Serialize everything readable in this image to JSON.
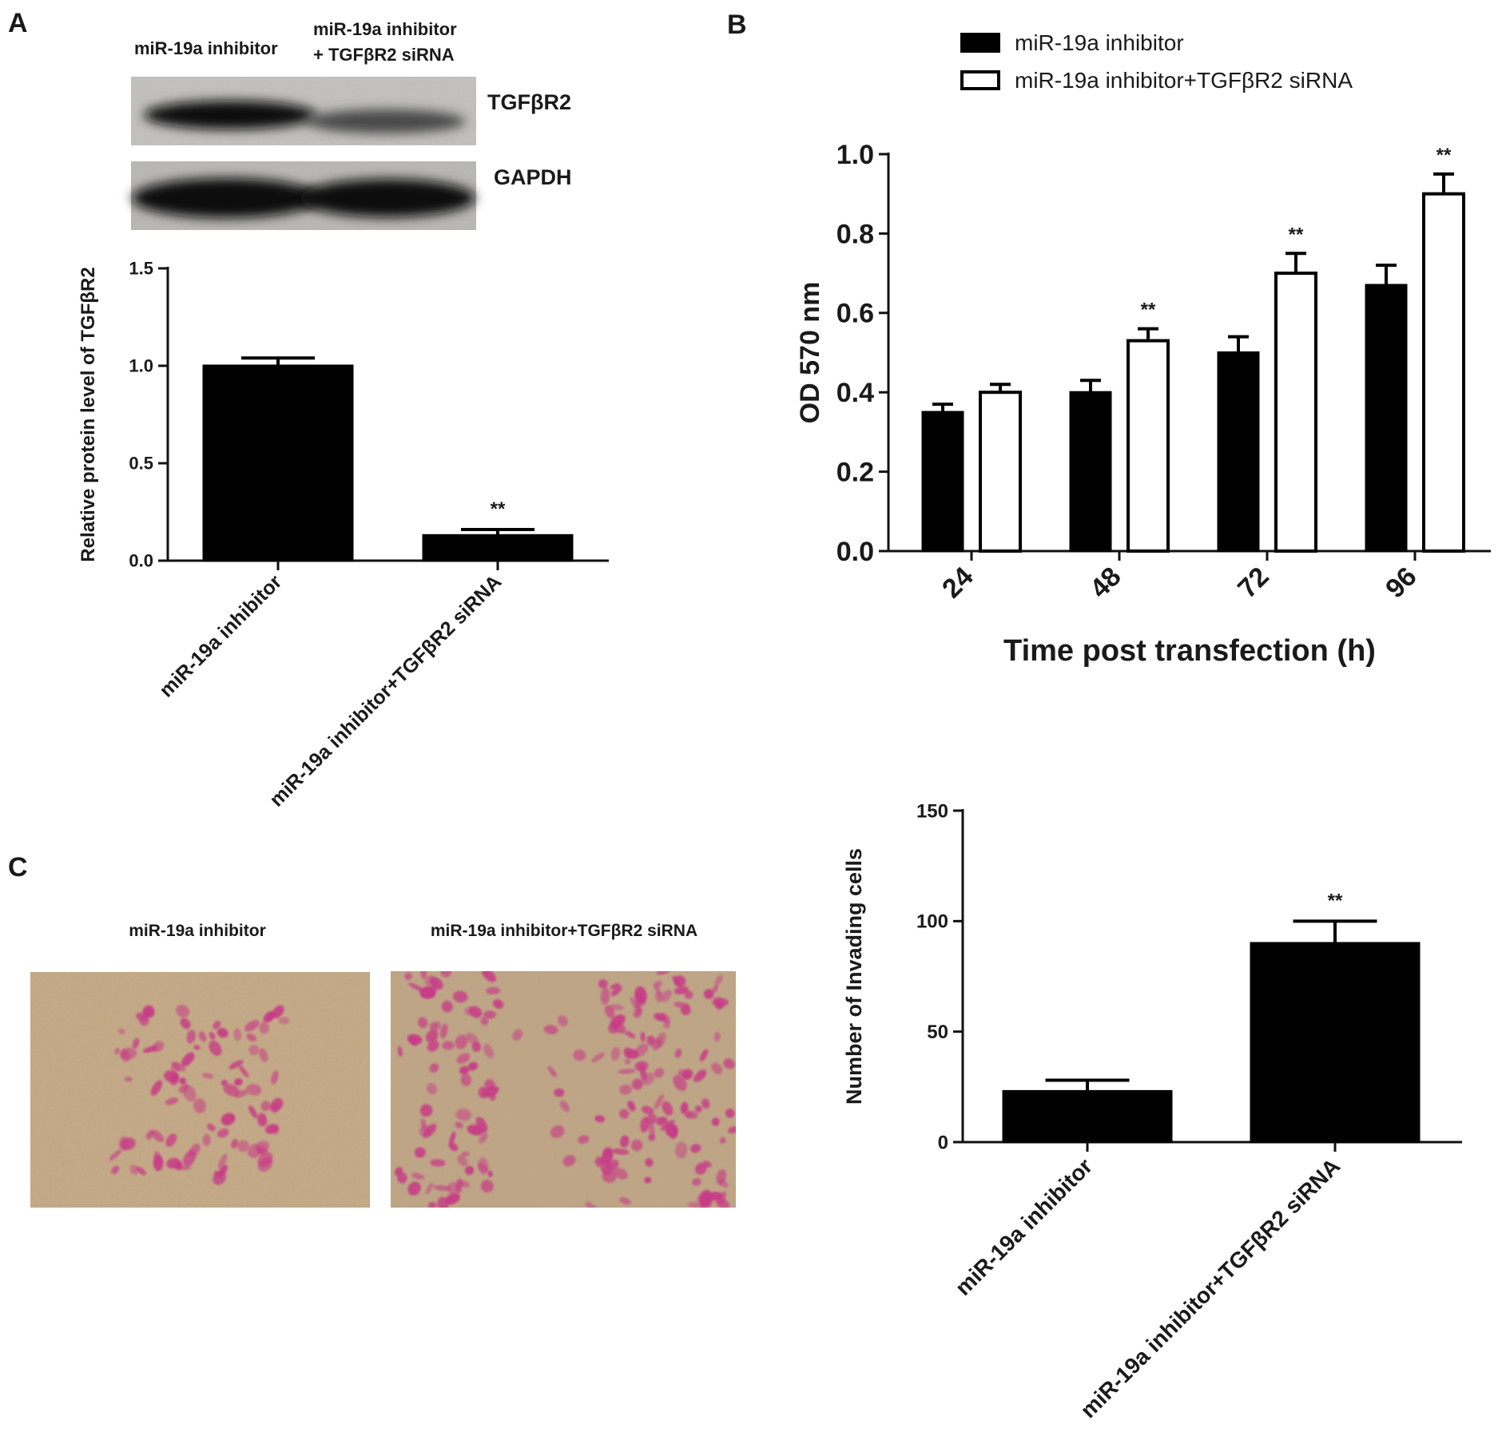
{
  "colors": {
    "bar_fill": "#000000",
    "open_bar_fill": "#ffffff",
    "axis": "#111111",
    "stain_magenta": "#c83a86",
    "micro_background": "#c9ab85"
  },
  "panels": {
    "a": {
      "letter": "A",
      "blot": {
        "lane_labels": [
          "miR-19a inhibitor",
          "miR-19a inhibitor",
          "+ TGFβR2 siRNA"
        ],
        "band_labels": [
          "TGFβR2",
          "GAPDH"
        ]
      }
    },
    "b": {
      "letter": "B"
    },
    "c": {
      "letter": "C",
      "image_labels": [
        "miR-19a inhibitor",
        "miR-19a inhibitor+TGFβR2 siRNA"
      ]
    }
  },
  "chart_data": [
    {
      "id": "a",
      "type": "bar",
      "title": "",
      "xlabel": "",
      "ylabel": "Relative protein level of TGFβR2",
      "categories": [
        "miR-19a inhibitor",
        "miR-19a inhibitor+TGFβR2 siRNA"
      ],
      "values": [
        1.0,
        0.13
      ],
      "errors": [
        0.04,
        0.03
      ],
      "significance": [
        "",
        "**"
      ],
      "ylim": [
        0,
        1.5
      ],
      "yticks": [
        0,
        0.5,
        1.0,
        1.5
      ],
      "ytick_labels": [
        "0.0",
        "0.5",
        "1.0",
        "1.5"
      ],
      "grid": false
    },
    {
      "id": "b",
      "type": "bar",
      "title": "",
      "xlabel": "Time post transfection (h)",
      "ylabel": "OD 570 nm",
      "categories": [
        "24",
        "48",
        "72",
        "96"
      ],
      "series": [
        {
          "name": "miR-19a inhibitor",
          "fill": "#000000",
          "values": [
            0.35,
            0.4,
            0.5,
            0.67
          ],
          "errors": [
            0.02,
            0.03,
            0.04,
            0.05
          ],
          "significance": [
            "",
            "",
            "",
            ""
          ]
        },
        {
          "name": "miR-19a inhibitor+TGFβR2 siRNA",
          "fill": "#ffffff",
          "values": [
            0.4,
            0.53,
            0.7,
            0.9
          ],
          "errors": [
            0.02,
            0.03,
            0.05,
            0.05
          ],
          "significance": [
            "",
            "**",
            "**",
            "**"
          ]
        }
      ],
      "ylim": [
        0,
        1.0
      ],
      "yticks": [
        0,
        0.2,
        0.4,
        0.6,
        0.8,
        1.0
      ],
      "ytick_labels": [
        "0.0",
        "0.2",
        "0.4",
        "0.6",
        "0.8",
        "1.0"
      ],
      "legend": "top",
      "grid": false
    },
    {
      "id": "c",
      "type": "bar",
      "title": "",
      "xlabel": "",
      "ylabel": "Number of Invading cells",
      "categories": [
        "miR-19a inhibitor",
        "miR-19a inhibitor+TGFβR2 siRNA"
      ],
      "values": [
        23,
        90
      ],
      "errors": [
        5,
        10
      ],
      "significance": [
        "",
        "**"
      ],
      "ylim": [
        0,
        150
      ],
      "yticks": [
        0,
        50,
        100,
        150
      ],
      "ytick_labels": [
        "0",
        "50",
        "100",
        "150"
      ],
      "grid": false
    }
  ]
}
